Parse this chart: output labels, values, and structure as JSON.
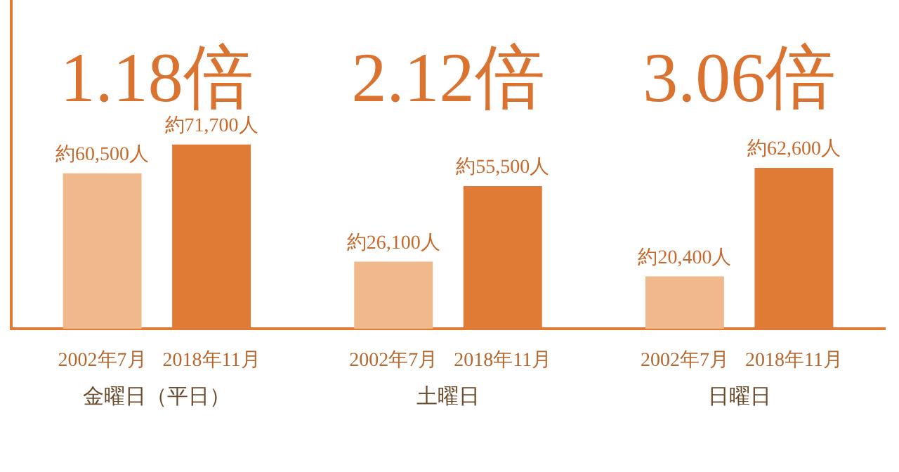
{
  "chart_data": {
    "type": "bar",
    "categories": [
      "金曜日（平日）",
      "土曜日",
      "日曜日"
    ],
    "series": [
      {
        "name": "2002年7月",
        "color": "#f0b98c",
        "values": [
          60500,
          26100,
          20400
        ],
        "value_labels": [
          "約60,500人",
          "約26,100人",
          "約20,400人"
        ]
      },
      {
        "name": "2018年11月",
        "color": "#e07b35",
        "values": [
          71700,
          55500,
          62600
        ],
        "value_labels": [
          "約71,700人",
          "約55,500人",
          "約62,600人"
        ]
      }
    ],
    "annotations": [
      "1.18倍",
      "2.12倍",
      "3.06倍"
    ],
    "ylim": [
      0,
      128000
    ],
    "tick_labels": "x",
    "grid": false,
    "legend": false
  }
}
